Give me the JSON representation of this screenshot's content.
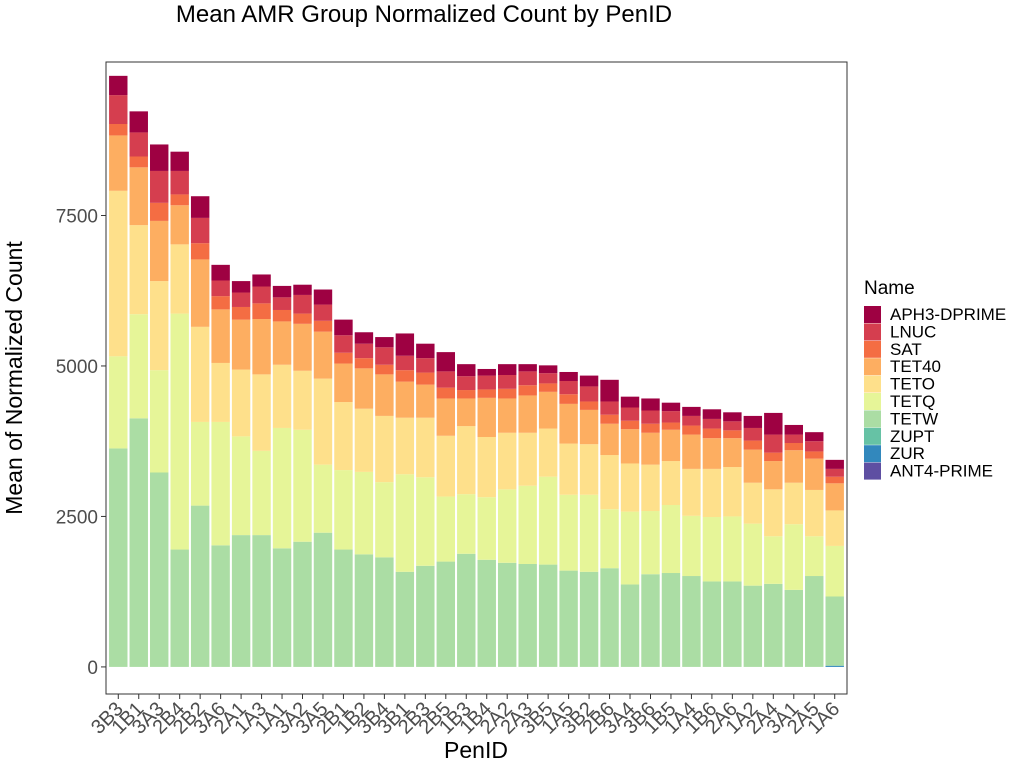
{
  "chart_data": {
    "type": "bar",
    "stacked": true,
    "title": "Mean AMR Group Normalized Count by PenID",
    "xlabel": "PenID",
    "ylabel": "Mean of Normalized Count",
    "ylim": [
      -450,
      10050
    ],
    "yticks": [
      0,
      2500,
      5000,
      7500
    ],
    "ytick_labels": [
      "0",
      "2500",
      "5000",
      "7500"
    ],
    "legend_title": "Name",
    "legend_position": "right",
    "grid": false,
    "categories": [
      "3B3",
      "1B1",
      "3A3",
      "2B4",
      "2B2",
      "3A6",
      "2A1",
      "1A3",
      "1A1",
      "3A2",
      "3A5",
      "2B1",
      "1B2",
      "3B4",
      "3B1",
      "2B3",
      "2B5",
      "1B3",
      "1B4",
      "2A2",
      "2A3",
      "3B5",
      "1A5",
      "3B2",
      "2B6",
      "3A4",
      "3B6",
      "1B5",
      "1A4",
      "1B6",
      "2A6",
      "1A2",
      "2A4",
      "3A1",
      "2A5",
      "1A6"
    ],
    "series": [
      {
        "name": "ANT4-PRIME",
        "color": "#5e4fa2",
        "values": [
          0,
          0,
          0,
          0,
          0,
          0,
          0,
          0,
          0,
          0,
          0,
          0,
          0,
          0,
          0,
          0,
          0,
          0,
          0,
          0,
          0,
          0,
          0,
          0,
          0,
          0,
          0,
          0,
          0,
          0,
          0,
          0,
          0,
          0,
          0,
          0
        ]
      },
      {
        "name": "ZUR",
        "color": "#3288bd",
        "values": [
          0,
          0,
          0,
          0,
          0,
          0,
          0,
          0,
          0,
          0,
          0,
          0,
          0,
          0,
          0,
          0,
          0,
          0,
          0,
          0,
          0,
          0,
          0,
          0,
          0,
          0,
          0,
          0,
          0,
          0,
          0,
          0,
          0,
          0,
          0,
          20
        ]
      },
      {
        "name": "ZUPT",
        "color": "#66c2a5",
        "values": [
          0,
          0,
          0,
          0,
          0,
          0,
          0,
          0,
          0,
          0,
          0,
          0,
          0,
          0,
          0,
          0,
          0,
          0,
          0,
          0,
          0,
          0,
          0,
          0,
          0,
          0,
          0,
          0,
          0,
          0,
          0,
          0,
          0,
          0,
          0,
          0
        ]
      },
      {
        "name": "TETW",
        "color": "#abdda4",
        "values": [
          3630,
          4130,
          3230,
          1950,
          2680,
          2020,
          2190,
          2190,
          1970,
          2080,
          2230,
          1950,
          1870,
          1820,
          1580,
          1680,
          1750,
          1880,
          1780,
          1730,
          1710,
          1700,
          1600,
          1580,
          1640,
          1370,
          1540,
          1560,
          1510,
          1420,
          1420,
          1350,
          1380,
          1280,
          1510,
          1150
        ]
      },
      {
        "name": "TETQ",
        "color": "#e6f598",
        "values": [
          1530,
          1730,
          1700,
          3920,
          1390,
          2050,
          1640,
          1400,
          2000,
          1860,
          1130,
          1320,
          1370,
          1250,
          1620,
          1470,
          1080,
          990,
          1040,
          1220,
          1300,
          1460,
          1260,
          1280,
          980,
          1210,
          1050,
          1130,
          1000,
          1070,
          1080,
          1030,
          790,
          1090,
          660,
          840
        ]
      },
      {
        "name": "TETO",
        "color": "#fee08b",
        "values": [
          2750,
          1480,
          1480,
          1150,
          1580,
          980,
          1110,
          1270,
          1050,
          980,
          1430,
          1130,
          1050,
          1100,
          940,
          990,
          1010,
          1130,
          1000,
          940,
          880,
          800,
          850,
          840,
          900,
          800,
          770,
          730,
          780,
          800,
          820,
          680,
          780,
          690,
          770,
          590
        ]
      },
      {
        "name": "TET40",
        "color": "#fdae61",
        "values": [
          920,
          960,
          1000,
          650,
          1120,
          890,
          830,
          920,
          720,
          780,
          780,
          640,
          670,
          690,
          600,
          550,
          620,
          460,
          650,
          570,
          620,
          610,
          660,
          570,
          520,
          570,
          530,
          520,
          570,
          510,
          480,
          550,
          470,
          540,
          520,
          450
        ]
      },
      {
        "name": "SAT",
        "color": "#f46d43",
        "values": [
          190,
          180,
          300,
          180,
          270,
          220,
          210,
          260,
          190,
          170,
          180,
          180,
          170,
          160,
          190,
          200,
          180,
          140,
          140,
          160,
          170,
          140,
          160,
          140,
          150,
          140,
          150,
          120,
          150,
          160,
          130,
          150,
          140,
          120,
          120,
          110
        ]
      },
      {
        "name": "LNUC",
        "color": "#d53e4f",
        "values": [
          480,
          400,
          530,
          390,
          420,
          260,
          240,
          280,
          210,
          310,
          270,
          290,
          240,
          290,
          240,
          240,
          270,
          230,
          230,
          230,
          230,
          170,
          220,
          250,
          220,
          220,
          220,
          190,
          160,
          160,
          150,
          210,
          300,
          140,
          170,
          130
        ]
      },
      {
        "name": "APH3-DPRIME",
        "color": "#9e0142",
        "values": [
          320,
          350,
          440,
          320,
          360,
          260,
          190,
          200,
          190,
          170,
          250,
          260,
          190,
          170,
          370,
          240,
          320,
          200,
          110,
          180,
          120,
          130,
          150,
          180,
          360,
          180,
          200,
          140,
          150,
          160,
          150,
          200,
          360,
          160,
          150,
          150
        ]
      }
    ]
  }
}
